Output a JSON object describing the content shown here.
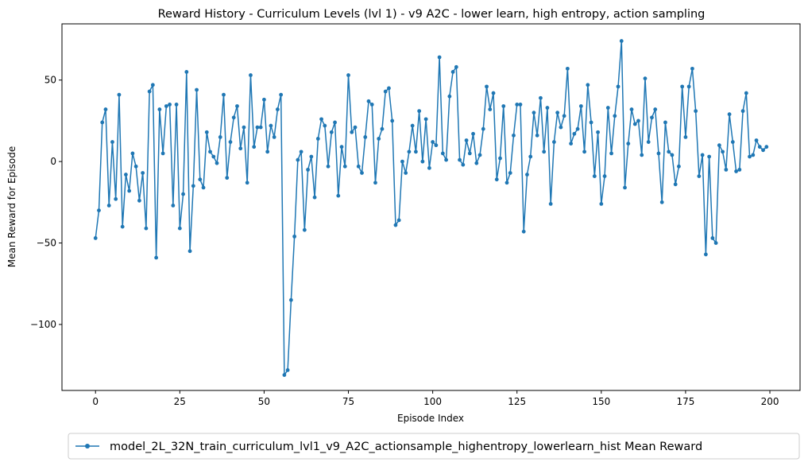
{
  "chart_data": {
    "type": "line",
    "title": "Reward History - Curriculum Levels (lvl 1) - v9 A2C - lower learn, high entropy, action sampling",
    "xlabel": "Episode Index",
    "ylabel": "Mean Reward for Episode",
    "xlim": [
      -9.95,
      208.95
    ],
    "ylim": [
      -140.5,
      84.5
    ],
    "xticks": [
      0,
      25,
      50,
      75,
      100,
      125,
      150,
      175,
      200
    ],
    "yticks": [
      -100,
      -50,
      0,
      50
    ],
    "ytick_labels": [
      "−100",
      "−50",
      "0",
      "50"
    ],
    "legend_position": "below",
    "grid": false,
    "series": [
      {
        "name": "model_2L_32N_train_curriculum_lvl1_v9_A2C_actionsample_highentropy_lowerlearn_hist Mean Reward",
        "color": "#1f77b4",
        "marker": "circle",
        "x": [
          0,
          1,
          2,
          3,
          4,
          5,
          6,
          7,
          8,
          9,
          10,
          11,
          12,
          13,
          14,
          15,
          16,
          17,
          18,
          19,
          20,
          21,
          22,
          23,
          24,
          25,
          26,
          27,
          28,
          29,
          30,
          31,
          32,
          33,
          34,
          35,
          36,
          37,
          38,
          39,
          40,
          41,
          42,
          43,
          44,
          45,
          46,
          47,
          48,
          49,
          50,
          51,
          52,
          53,
          54,
          55,
          56,
          57,
          58,
          59,
          60,
          61,
          62,
          63,
          64,
          65,
          66,
          67,
          68,
          69,
          70,
          71,
          72,
          73,
          74,
          75,
          76,
          77,
          78,
          79,
          80,
          81,
          82,
          83,
          84,
          85,
          86,
          87,
          88,
          89,
          90,
          91,
          92,
          93,
          94,
          95,
          96,
          97,
          98,
          99,
          100,
          101,
          102,
          103,
          104,
          105,
          106,
          107,
          108,
          109,
          110,
          111,
          112,
          113,
          114,
          115,
          116,
          117,
          118,
          119,
          120,
          121,
          122,
          123,
          124,
          125,
          126,
          127,
          128,
          129,
          130,
          131,
          132,
          133,
          134,
          135,
          136,
          137,
          138,
          139,
          140,
          141,
          142,
          143,
          144,
          145,
          146,
          147,
          148,
          149,
          150,
          151,
          152,
          153,
          154,
          155,
          156,
          157,
          158,
          159,
          160,
          161,
          162,
          163,
          164,
          165,
          166,
          167,
          168,
          169,
          170,
          171,
          172,
          173,
          174,
          175,
          176,
          177,
          178,
          179,
          180,
          181,
          182,
          183,
          184,
          185,
          186,
          187,
          188,
          189,
          190,
          191,
          192,
          193,
          194,
          195,
          196,
          197,
          198,
          199
        ],
        "y": [
          -47,
          -30,
          24,
          32,
          -27,
          12,
          -23,
          41,
          -40,
          -8,
          -18,
          5,
          -3,
          -24,
          -7,
          -41,
          43,
          47,
          -59,
          32,
          5,
          34,
          35,
          -27,
          35,
          -41,
          -20,
          55,
          -55,
          -15,
          44,
          -11,
          -16,
          18,
          6,
          3,
          -1,
          15,
          41,
          -10,
          12,
          27,
          34,
          8,
          21,
          -13,
          53,
          9,
          21,
          21,
          38,
          6,
          22,
          15,
          32,
          41,
          -131,
          -128,
          -85,
          -46,
          1,
          6,
          -42,
          -5,
          3,
          -22,
          14,
          26,
          22,
          -3,
          18,
          24,
          -21,
          9,
          -3,
          53,
          18,
          21,
          -3,
          -7,
          15,
          37,
          35,
          -13,
          14,
          20,
          43,
          45,
          25,
          -39,
          -36,
          0,
          -7,
          6,
          22,
          6,
          31,
          0,
          26,
          -4,
          12,
          10,
          64,
          5,
          1,
          40,
          55,
          58,
          1,
          -2,
          13,
          5,
          17,
          -1,
          4,
          20,
          46,
          32,
          42,
          -11,
          2,
          34,
          -13,
          -7,
          16,
          35,
          35,
          -43,
          -8,
          3,
          30,
          16,
          39,
          6,
          33,
          -26,
          12,
          30,
          21,
          28,
          57,
          11,
          17,
          20,
          34,
          6,
          47,
          24,
          -9,
          18,
          -26,
          -9,
          33,
          5,
          28,
          46,
          74,
          -16,
          11,
          32,
          23,
          25,
          4,
          51,
          12,
          27,
          32,
          5,
          -25,
          24,
          6,
          4,
          -14,
          -3,
          46,
          15,
          46,
          57,
          31,
          -9,
          4,
          -57,
          3,
          -47,
          -50,
          10,
          6,
          -5,
          29,
          12,
          -6,
          -5,
          31,
          42,
          3,
          4,
          13,
          9,
          7,
          9
        ]
      }
    ]
  }
}
